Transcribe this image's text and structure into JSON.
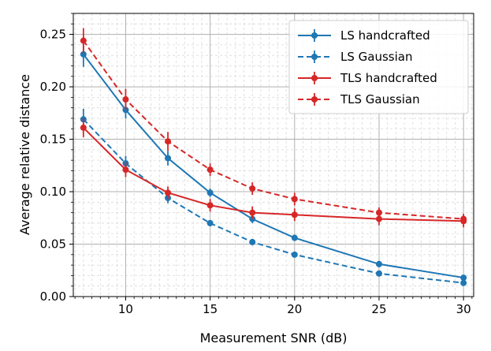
{
  "chart_data": {
    "type": "line",
    "title": "",
    "xlabel": "Measurement SNR (dB)",
    "ylabel": "Average relative distance",
    "xlim": [
      6.9,
      30.6
    ],
    "ylim": [
      0.0,
      0.27
    ],
    "x_ticks": [
      10,
      15,
      20,
      25,
      30
    ],
    "y_ticks": [
      0.0,
      0.05,
      0.1,
      0.15,
      0.2,
      0.25
    ],
    "y_tick_labels": [
      "0.00",
      "0.05",
      "0.10",
      "0.15",
      "0.20",
      "0.25"
    ],
    "x_minor_step": 0.5,
    "y_minor_step": 0.01,
    "grid": true,
    "legend_position": "top-right",
    "x": [
      7.5,
      10,
      12.5,
      15,
      17.5,
      20,
      25,
      30
    ],
    "series": [
      {
        "name": "LS handcrafted",
        "color": "#1f77b4",
        "dash": "solid",
        "values": [
          0.231,
          0.178,
          0.132,
          0.099,
          0.074,
          0.056,
          0.031,
          0.018
        ],
        "errors": [
          0.012,
          0.008,
          0.007,
          0.004,
          0.004,
          0.003,
          0.003,
          0.002
        ]
      },
      {
        "name": "LS Gaussian",
        "color": "#1f77b4",
        "dash": "dashed",
        "values": [
          0.169,
          0.127,
          0.094,
          0.07,
          0.052,
          0.04,
          0.022,
          0.013
        ],
        "errors": [
          0.01,
          0.007,
          0.005,
          0.003,
          0.003,
          0.002,
          0.002,
          0.002
        ]
      },
      {
        "name": "TLS handcrafted",
        "color": "#d62728",
        "dash": "solid",
        "values": [
          0.161,
          0.121,
          0.099,
          0.087,
          0.08,
          0.078,
          0.074,
          0.072
        ],
        "errors": [
          0.009,
          0.007,
          0.006,
          0.006,
          0.006,
          0.006,
          0.006,
          0.006
        ]
      },
      {
        "name": "TLS Gaussian",
        "color": "#d62728",
        "dash": "dashed",
        "values": [
          0.244,
          0.188,
          0.148,
          0.121,
          0.103,
          0.093,
          0.08,
          0.074
        ],
        "errors": [
          0.012,
          0.01,
          0.009,
          0.006,
          0.006,
          0.006,
          0.005,
          0.005
        ]
      }
    ]
  }
}
